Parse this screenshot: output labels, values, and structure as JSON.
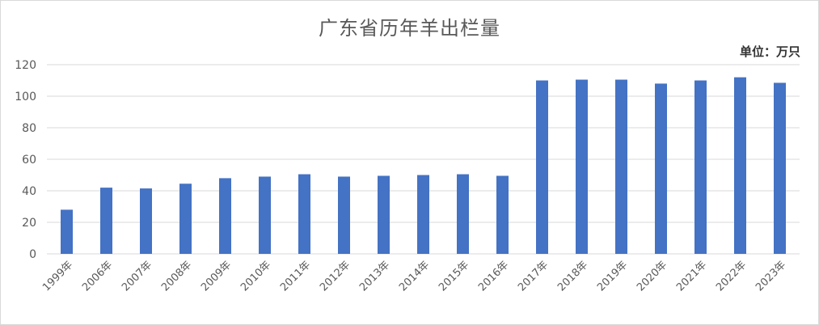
{
  "chart_data": {
    "type": "bar",
    "title": "广东省历年羊出栏量",
    "unit": "单位：万只",
    "categories": [
      "1999年",
      "2006年",
      "2007年",
      "2008年",
      "2009年",
      "2010年",
      "2011年",
      "2012年",
      "2013年",
      "2014年",
      "2015年",
      "2016年",
      "2017年",
      "2018年",
      "2019年",
      "2020年",
      "2021年",
      "2022年",
      "2023年"
    ],
    "series": [
      {
        "values": [
          28,
          42,
          41.5,
          44.5,
          48,
          49,
          50.5,
          49,
          49.5,
          50,
          50.5,
          49.5,
          110,
          110.5,
          110.5,
          108,
          110,
          112,
          108.5
        ]
      }
    ],
    "ylim": [
      0,
      120
    ],
    "yticks": [
      0,
      20,
      40,
      60,
      80,
      100,
      120
    ],
    "grid": true,
    "legend": "none",
    "bar_color": "#4472c4",
    "grid_color": "#d9d9d9"
  }
}
